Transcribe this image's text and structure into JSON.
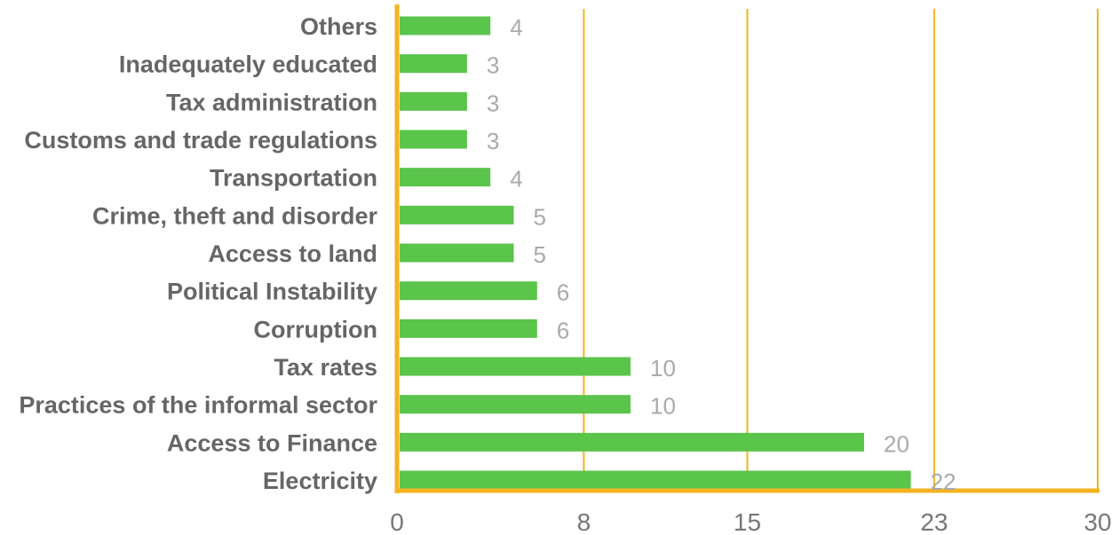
{
  "chart_data": {
    "type": "bar",
    "orientation": "horizontal",
    "categories": [
      "Others",
      "Inadequately educated",
      "Tax administration",
      "Customs and trade regulations",
      "Transportation",
      "Crime, theft and disorder",
      "Access to land",
      "Political Instability",
      "Corruption",
      "Tax rates",
      "Practices of the informal sector",
      "Access to Finance",
      "Electricity"
    ],
    "values": [
      4,
      3,
      3,
      3,
      4,
      5,
      5,
      6,
      6,
      10,
      10,
      20,
      22
    ],
    "value_labels": [
      "4",
      "3",
      "3",
      "3",
      "4",
      "5",
      "5",
      "6",
      "6",
      "10",
      "10",
      "20",
      "22"
    ],
    "x_ticks": [
      0,
      8,
      15,
      23,
      30
    ],
    "x_tick_labels": [
      "0",
      "8",
      "15",
      "23",
      "30"
    ],
    "xlim": [
      0,
      30
    ],
    "grid": "vertical",
    "legend": "none"
  },
  "colors": {
    "bar": "#5bc44b",
    "axis": "#f5b31f",
    "grid": "#f5b31f",
    "category_text": "#666666",
    "value_text": "#aaaaaa",
    "tick_text": "#777777"
  }
}
